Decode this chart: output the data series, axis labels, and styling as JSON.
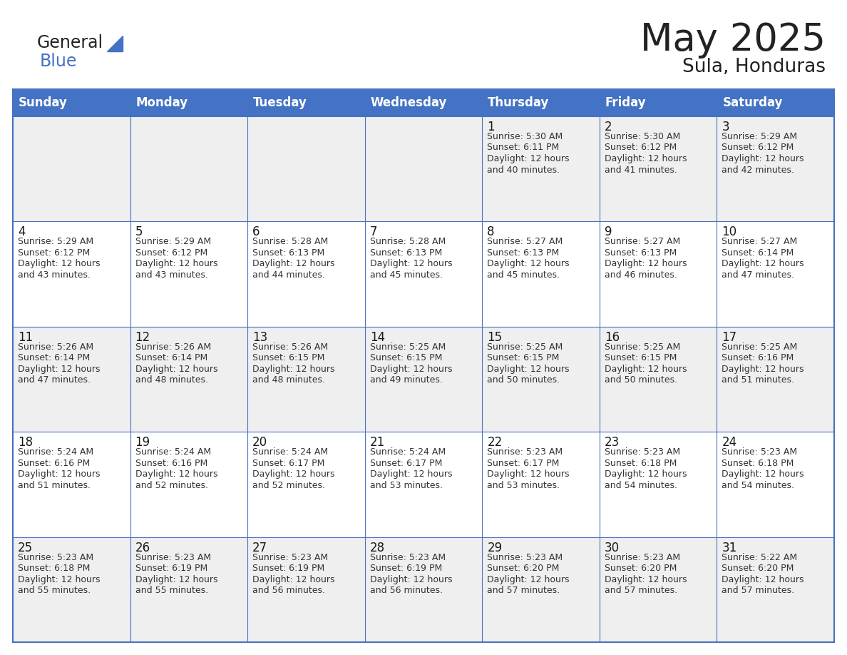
{
  "title": "May 2025",
  "subtitle": "Sula, Honduras",
  "header_color": "#4472C4",
  "header_text_color": "#FFFFFF",
  "days_of_week": [
    "Sunday",
    "Monday",
    "Tuesday",
    "Wednesday",
    "Thursday",
    "Friday",
    "Saturday"
  ],
  "cell_bg_even": "#EFEFEF",
  "cell_bg_odd": "#FFFFFF",
  "cell_border_color": "#4472C4",
  "day_num_color": "#1a1a1a",
  "info_color": "#333333",
  "calendar_data": [
    [
      {
        "day": "",
        "sunrise": "",
        "sunset": "",
        "daylight": ""
      },
      {
        "day": "",
        "sunrise": "",
        "sunset": "",
        "daylight": ""
      },
      {
        "day": "",
        "sunrise": "",
        "sunset": "",
        "daylight": ""
      },
      {
        "day": "",
        "sunrise": "",
        "sunset": "",
        "daylight": ""
      },
      {
        "day": "1",
        "sunrise": "5:30 AM",
        "sunset": "6:11 PM",
        "daylight": "12 hours\nand 40 minutes."
      },
      {
        "day": "2",
        "sunrise": "5:30 AM",
        "sunset": "6:12 PM",
        "daylight": "12 hours\nand 41 minutes."
      },
      {
        "day": "3",
        "sunrise": "5:29 AM",
        "sunset": "6:12 PM",
        "daylight": "12 hours\nand 42 minutes."
      }
    ],
    [
      {
        "day": "4",
        "sunrise": "5:29 AM",
        "sunset": "6:12 PM",
        "daylight": "12 hours\nand 43 minutes."
      },
      {
        "day": "5",
        "sunrise": "5:29 AM",
        "sunset": "6:12 PM",
        "daylight": "12 hours\nand 43 minutes."
      },
      {
        "day": "6",
        "sunrise": "5:28 AM",
        "sunset": "6:13 PM",
        "daylight": "12 hours\nand 44 minutes."
      },
      {
        "day": "7",
        "sunrise": "5:28 AM",
        "sunset": "6:13 PM",
        "daylight": "12 hours\nand 45 minutes."
      },
      {
        "day": "8",
        "sunrise": "5:27 AM",
        "sunset": "6:13 PM",
        "daylight": "12 hours\nand 45 minutes."
      },
      {
        "day": "9",
        "sunrise": "5:27 AM",
        "sunset": "6:13 PM",
        "daylight": "12 hours\nand 46 minutes."
      },
      {
        "day": "10",
        "sunrise": "5:27 AM",
        "sunset": "6:14 PM",
        "daylight": "12 hours\nand 47 minutes."
      }
    ],
    [
      {
        "day": "11",
        "sunrise": "5:26 AM",
        "sunset": "6:14 PM",
        "daylight": "12 hours\nand 47 minutes."
      },
      {
        "day": "12",
        "sunrise": "5:26 AM",
        "sunset": "6:14 PM",
        "daylight": "12 hours\nand 48 minutes."
      },
      {
        "day": "13",
        "sunrise": "5:26 AM",
        "sunset": "6:15 PM",
        "daylight": "12 hours\nand 48 minutes."
      },
      {
        "day": "14",
        "sunrise": "5:25 AM",
        "sunset": "6:15 PM",
        "daylight": "12 hours\nand 49 minutes."
      },
      {
        "day": "15",
        "sunrise": "5:25 AM",
        "sunset": "6:15 PM",
        "daylight": "12 hours\nand 50 minutes."
      },
      {
        "day": "16",
        "sunrise": "5:25 AM",
        "sunset": "6:15 PM",
        "daylight": "12 hours\nand 50 minutes."
      },
      {
        "day": "17",
        "sunrise": "5:25 AM",
        "sunset": "6:16 PM",
        "daylight": "12 hours\nand 51 minutes."
      }
    ],
    [
      {
        "day": "18",
        "sunrise": "5:24 AM",
        "sunset": "6:16 PM",
        "daylight": "12 hours\nand 51 minutes."
      },
      {
        "day": "19",
        "sunrise": "5:24 AM",
        "sunset": "6:16 PM",
        "daylight": "12 hours\nand 52 minutes."
      },
      {
        "day": "20",
        "sunrise": "5:24 AM",
        "sunset": "6:17 PM",
        "daylight": "12 hours\nand 52 minutes."
      },
      {
        "day": "21",
        "sunrise": "5:24 AM",
        "sunset": "6:17 PM",
        "daylight": "12 hours\nand 53 minutes."
      },
      {
        "day": "22",
        "sunrise": "5:23 AM",
        "sunset": "6:17 PM",
        "daylight": "12 hours\nand 53 minutes."
      },
      {
        "day": "23",
        "sunrise": "5:23 AM",
        "sunset": "6:18 PM",
        "daylight": "12 hours\nand 54 minutes."
      },
      {
        "day": "24",
        "sunrise": "5:23 AM",
        "sunset": "6:18 PM",
        "daylight": "12 hours\nand 54 minutes."
      }
    ],
    [
      {
        "day": "25",
        "sunrise": "5:23 AM",
        "sunset": "6:18 PM",
        "daylight": "12 hours\nand 55 minutes."
      },
      {
        "day": "26",
        "sunrise": "5:23 AM",
        "sunset": "6:19 PM",
        "daylight": "12 hours\nand 55 minutes."
      },
      {
        "day": "27",
        "sunrise": "5:23 AM",
        "sunset": "6:19 PM",
        "daylight": "12 hours\nand 56 minutes."
      },
      {
        "day": "28",
        "sunrise": "5:23 AM",
        "sunset": "6:19 PM",
        "daylight": "12 hours\nand 56 minutes."
      },
      {
        "day": "29",
        "sunrise": "5:23 AM",
        "sunset": "6:20 PM",
        "daylight": "12 hours\nand 57 minutes."
      },
      {
        "day": "30",
        "sunrise": "5:23 AM",
        "sunset": "6:20 PM",
        "daylight": "12 hours\nand 57 minutes."
      },
      {
        "day": "31",
        "sunrise": "5:22 AM",
        "sunset": "6:20 PM",
        "daylight": "12 hours\nand 57 minutes."
      }
    ]
  ]
}
